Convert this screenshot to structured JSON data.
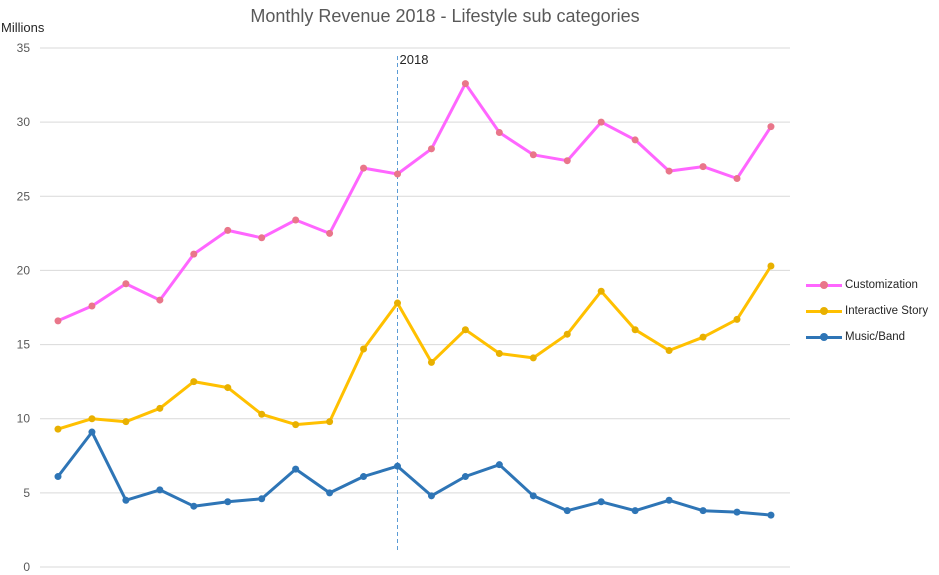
{
  "chart_data": {
    "type": "line",
    "title": "Monthly Revenue 2018  - Lifestyle sub categories",
    "units_label": "Millions",
    "ylim": [
      0,
      35
    ],
    "y_ticks": [
      "0",
      "5",
      "10",
      "15",
      "20",
      "25",
      "30",
      "35"
    ],
    "grid": true,
    "legend_position": "right",
    "annotation": {
      "label": "2018",
      "at_index": 10
    },
    "series": [
      {
        "name": "Customization",
        "color": "#ff66ff",
        "marker_color": "#e9768a",
        "values": [
          16.6,
          17.6,
          19.1,
          18.0,
          21.1,
          22.7,
          22.2,
          23.4,
          22.5,
          26.9,
          26.5,
          28.2,
          32.6,
          29.3,
          27.8,
          27.4,
          30.0,
          28.8,
          26.7,
          27.0,
          26.2,
          29.7
        ]
      },
      {
        "name": "Interactive Story",
        "color": "#ffc000",
        "marker_color": "#e8b000",
        "values": [
          9.3,
          10.0,
          9.8,
          10.7,
          12.5,
          12.1,
          10.3,
          9.6,
          9.8,
          14.7,
          17.8,
          13.8,
          16.0,
          14.4,
          14.1,
          15.7,
          18.6,
          16.0,
          14.6,
          15.5,
          16.7,
          20.3
        ]
      },
      {
        "name": "Music/Band",
        "color": "#2e75b6",
        "marker_color": "#2e75b6",
        "values": [
          6.1,
          9.1,
          4.5,
          5.2,
          4.1,
          4.4,
          4.6,
          6.6,
          5.0,
          6.1,
          6.8,
          4.8,
          6.1,
          6.9,
          4.8,
          3.8,
          4.4,
          3.8,
          4.5,
          3.8,
          3.7,
          3.5
        ]
      }
    ]
  }
}
